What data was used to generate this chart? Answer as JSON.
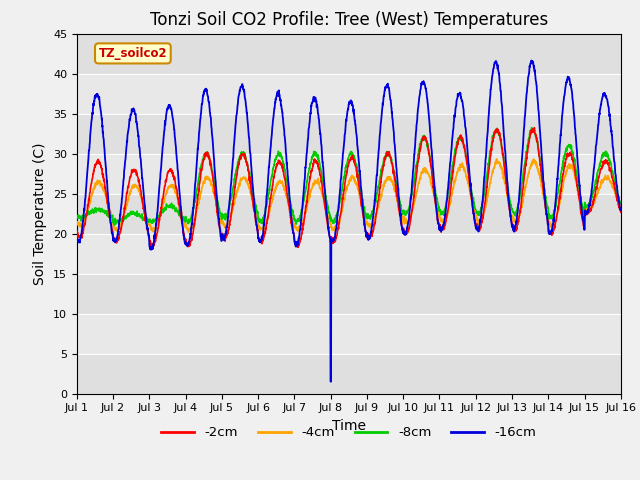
{
  "title": "Tonzi Soil CO2 Profile: Tree (West) Temperatures",
  "xlabel": "Time",
  "ylabel": "Soil Temperature (C)",
  "ylim": [
    0,
    45
  ],
  "legend_label": "TZ_soilco2",
  "series_labels": [
    "-2cm",
    "-4cm",
    "-8cm",
    "-16cm"
  ],
  "series_colors": [
    "#ff0000",
    "#ffa500",
    "#00cc00",
    "#0000dd"
  ],
  "xtick_labels": [
    "Jul 1",
    "Jul 2",
    "Jul 3",
    "Jul 4",
    "Jul 5",
    "Jul 6",
    "Jul 7",
    "Jul 8",
    "Jul 9",
    "Jul 10",
    "Jul 11",
    "Jul 12",
    "Jul 13",
    "Jul 14",
    "Jul 15",
    "Jul 16"
  ],
  "ytick_vals": [
    0,
    5,
    10,
    15,
    20,
    25,
    30,
    35,
    40,
    45
  ],
  "plot_bg_color": "#e8e8e8",
  "fig_bg_color": "#f0f0f0",
  "grid_color": "#ffffff",
  "title_fontsize": 12,
  "axis_label_fontsize": 10,
  "tick_fontsize": 8,
  "legend_box_facecolor": "#ffffcc",
  "legend_box_edgecolor": "#cc8800",
  "legend_text_color": "#cc0000",
  "day_peaks_16cm": [
    37.5,
    35.5,
    36.0,
    38.0,
    38.5,
    37.5,
    37.0,
    36.5,
    38.5,
    39.0,
    37.5,
    41.5,
    41.5,
    39.5,
    37.5
  ],
  "day_mins_16cm": [
    19.0,
    19.0,
    18.0,
    18.5,
    19.5,
    19.0,
    18.5,
    19.0,
    19.5,
    20.0,
    20.5,
    20.5,
    20.5,
    20.0,
    22.5
  ],
  "day_peaks_2cm": [
    29.0,
    28.0,
    28.0,
    30.0,
    30.0,
    29.0,
    29.0,
    29.5,
    30.0,
    32.0,
    32.0,
    33.0,
    33.0,
    30.0,
    29.0
  ],
  "day_mins_2cm": [
    19.5,
    19.0,
    18.5,
    18.5,
    19.5,
    19.0,
    18.5,
    19.0,
    19.5,
    20.0,
    20.5,
    20.5,
    20.5,
    20.0,
    22.5
  ],
  "day_peaks_4cm": [
    26.5,
    26.0,
    26.0,
    27.0,
    27.0,
    26.5,
    26.5,
    27.0,
    27.0,
    28.0,
    28.5,
    29.0,
    29.0,
    28.5,
    27.0
  ],
  "day_mins_4cm": [
    21.0,
    20.5,
    20.5,
    20.5,
    21.0,
    20.5,
    20.5,
    20.5,
    21.0,
    21.5,
    21.5,
    21.5,
    21.5,
    21.0,
    23.0
  ],
  "day_peaks_8cm": [
    23.0,
    22.5,
    23.5,
    30.0,
    30.0,
    30.0,
    30.0,
    30.0,
    30.0,
    32.0,
    32.0,
    33.0,
    33.0,
    31.0,
    30.0
  ],
  "day_mins_8cm": [
    22.0,
    21.5,
    21.5,
    21.5,
    22.0,
    21.5,
    21.5,
    21.5,
    22.0,
    22.5,
    22.5,
    22.5,
    22.5,
    22.0,
    23.5
  ],
  "spike_day": 7.0,
  "spike_value": 1.5
}
